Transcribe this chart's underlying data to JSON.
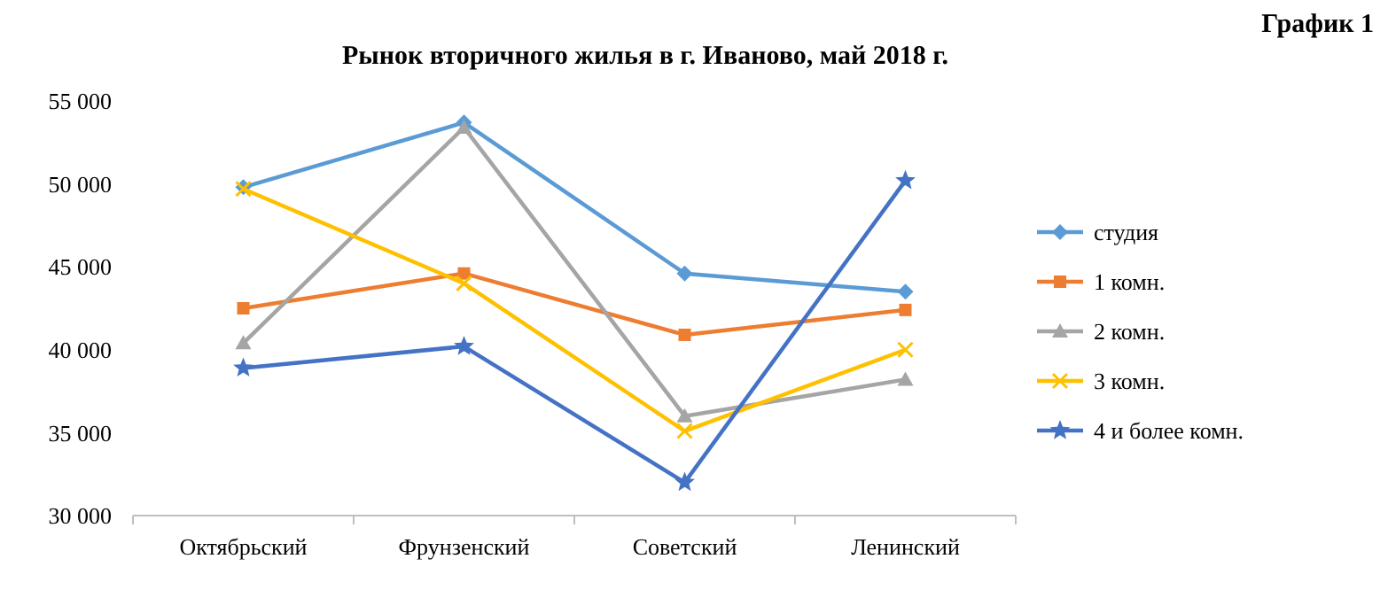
{
  "chart_data": {
    "type": "line",
    "title": "Рынок вторичного жилья в г. Иваново, май 2018 г.",
    "annotations": [
      "График 1"
    ],
    "categories": [
      "Октябрьский",
      "Фрунзенский",
      "Советский",
      "Ленинский"
    ],
    "ylim": [
      30000,
      55000
    ],
    "yticks": [
      {
        "value": 30000,
        "label": "30 000"
      },
      {
        "value": 35000,
        "label": "35 000"
      },
      {
        "value": 40000,
        "label": "40 000"
      },
      {
        "value": 45000,
        "label": "45 000"
      },
      {
        "value": 50000,
        "label": "50 000"
      },
      {
        "value": 55000,
        "label": "55 000"
      }
    ],
    "grid": false,
    "legend": "right",
    "series": [
      {
        "name": "студия",
        "color": "#5b9bd5",
        "marker": "diamond",
        "values": [
          49800,
          53700,
          44600,
          43500
        ]
      },
      {
        "name": "1 комн.",
        "color": "#ed7d31",
        "marker": "square",
        "values": [
          42500,
          44600,
          40900,
          42400
        ]
      },
      {
        "name": "2 комн.",
        "color": "#a5a5a5",
        "marker": "triangle",
        "values": [
          40400,
          53400,
          36000,
          38200
        ]
      },
      {
        "name": "3 комн.",
        "color": "#ffc000",
        "marker": "cross",
        "values": [
          49700,
          44000,
          35100,
          40000
        ]
      },
      {
        "name": "4 и более комн.",
        "color": "#4472c4",
        "marker": "star",
        "values": [
          38900,
          40200,
          32000,
          50200
        ]
      }
    ]
  }
}
